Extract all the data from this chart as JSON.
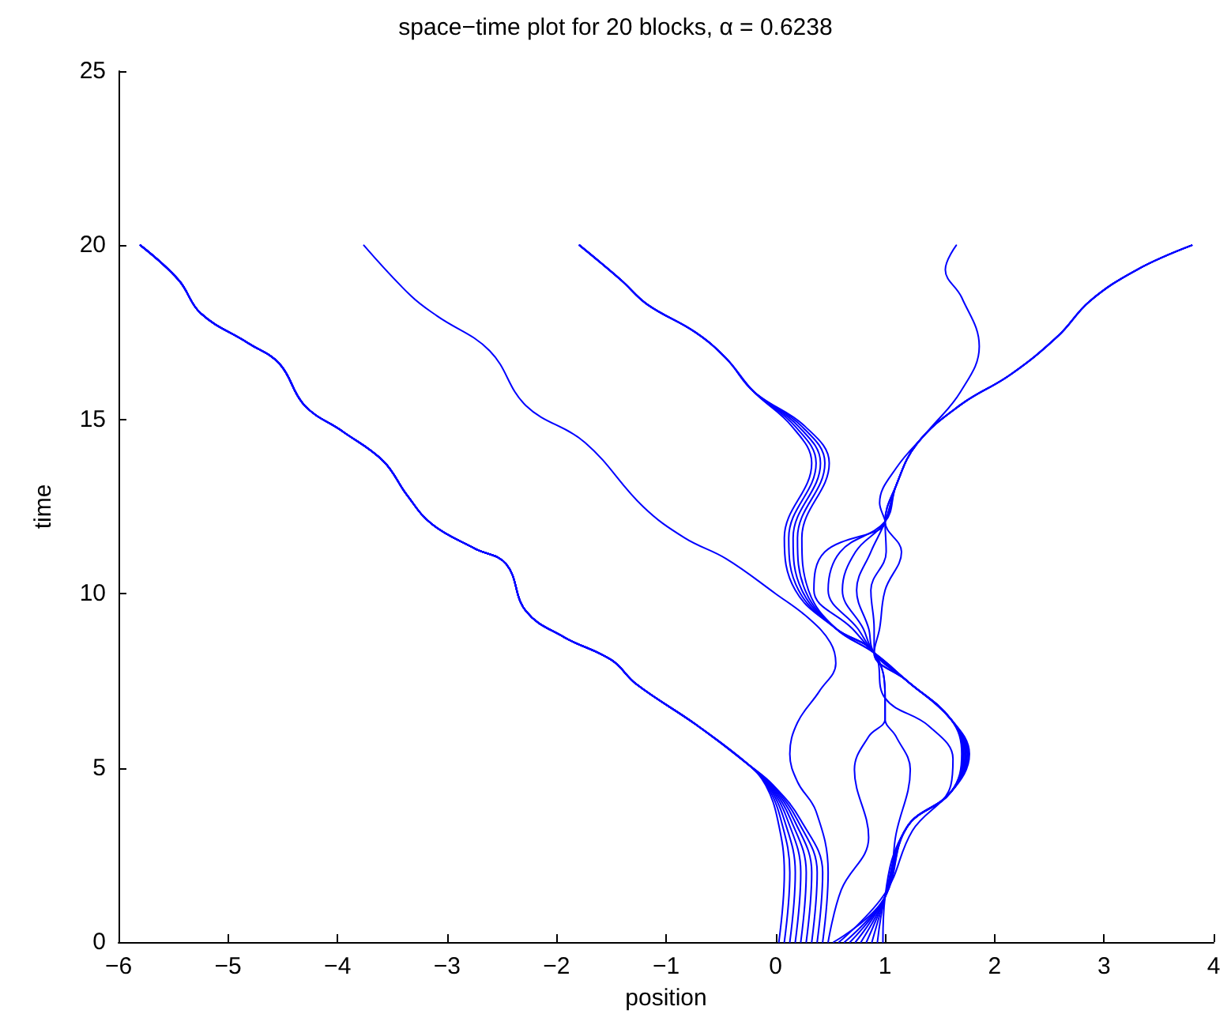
{
  "chart_data": {
    "type": "line",
    "title": "space−time plot for 20 blocks, α = 0.6238",
    "xlabel": "position",
    "ylabel": "time",
    "xlim": [
      -6,
      4
    ],
    "xticks": [
      -6,
      -5,
      -4,
      -3,
      -2,
      -1,
      0,
      1,
      2,
      3,
      4
    ],
    "ylim": [
      0,
      25
    ],
    "yticks": [
      0,
      5,
      10,
      15,
      20,
      25
    ],
    "grid": false,
    "marker": "none",
    "line_style": "solid",
    "series": [
      {
        "color": "#0000ff",
        "x": [
          0.03,
          0.08,
          0.02,
          -0.09,
          -0.25,
          -0.73,
          -1.27,
          -1.5,
          -1.93,
          -2.28,
          -2.46,
          -2.75,
          -3.14,
          -3.37,
          -3.58,
          -3.95,
          -4.3,
          -4.53,
          -4.82,
          -5.25,
          -5.45,
          -5.8
        ],
        "values": [
          0,
          2,
          3.5,
          4.5,
          5.1,
          6.25,
          7.4,
          8.1,
          8.75,
          9.5,
          10.85,
          11.3,
          12,
          12.85,
          13.8,
          14.65,
          15.4,
          16.6,
          17.2,
          18.05,
          19,
          20
        ]
      },
      {
        "color": "#0000ff",
        "x": [
          0.08,
          0.13,
          0.05,
          -0.08,
          -0.25,
          -0.73,
          -1.27,
          -1.5,
          -1.93,
          -2.28,
          -2.46,
          -2.75,
          -3.14,
          -3.37,
          -3.58,
          -3.95,
          -4.3,
          -4.53,
          -4.82,
          -5.25,
          -5.45,
          -5.8
        ],
        "values": [
          0,
          2,
          3.5,
          4.5,
          5.1,
          6.25,
          7.4,
          8.1,
          8.75,
          9.5,
          10.85,
          11.3,
          12,
          12.85,
          13.8,
          14.65,
          15.4,
          16.6,
          17.2,
          18.05,
          19,
          20
        ]
      },
      {
        "color": "#0000ff",
        "x": [
          0.13,
          0.18,
          0.08,
          -0.07,
          -0.25,
          -0.73,
          -1.27,
          -1.5,
          -1.93,
          -2.28,
          -2.46,
          -2.75,
          -3.14,
          -3.37,
          -3.58,
          -3.95,
          -4.3,
          -4.53,
          -4.82,
          -5.25,
          -5.45,
          -5.8
        ],
        "values": [
          0,
          2,
          3.5,
          4.5,
          5.1,
          6.25,
          7.4,
          8.1,
          8.75,
          9.5,
          10.85,
          11.3,
          12,
          12.85,
          13.8,
          14.65,
          15.4,
          16.6,
          17.2,
          18.05,
          19,
          20
        ]
      },
      {
        "color": "#0000ff",
        "x": [
          0.18,
          0.23,
          0.11,
          -0.06,
          -0.25,
          -0.73,
          -1.27,
          -1.5,
          -1.93,
          -2.28,
          -2.46,
          -2.75,
          -3.14,
          -3.37,
          -3.58,
          -3.95,
          -4.3,
          -4.53,
          -4.82,
          -5.25,
          -5.45,
          -5.8
        ],
        "values": [
          0,
          2,
          3.5,
          4.5,
          5.1,
          6.25,
          7.4,
          8.1,
          8.75,
          9.5,
          10.85,
          11.3,
          12,
          12.85,
          13.8,
          14.65,
          15.4,
          16.6,
          17.2,
          18.05,
          19,
          20
        ]
      },
      {
        "color": "#0000ff",
        "x": [
          0.23,
          0.28,
          0.14,
          -0.05,
          -0.25,
          -0.73,
          -1.27,
          -1.5,
          -1.93,
          -2.28,
          -2.46,
          -2.75,
          -3.14,
          -3.37,
          -3.58,
          -3.95,
          -4.3,
          -4.53,
          -4.82,
          -5.25,
          -5.45,
          -5.8
        ],
        "values": [
          0,
          2,
          3.5,
          4.5,
          5.1,
          6.25,
          7.4,
          8.1,
          8.75,
          9.5,
          10.85,
          11.3,
          12,
          12.85,
          13.8,
          14.65,
          15.4,
          16.6,
          17.2,
          18.05,
          19,
          20
        ]
      },
      {
        "color": "#0000ff",
        "x": [
          0.28,
          0.33,
          0.17,
          -0.04,
          -0.25,
          -0.73,
          -1.27,
          -1.5,
          -1.93,
          -2.28,
          -2.46,
          -2.75,
          -3.14,
          -3.37,
          -3.58,
          -3.95,
          -4.3,
          -4.53,
          -4.82,
          -5.25,
          -5.45,
          -5.8
        ],
        "values": [
          0,
          2,
          3.5,
          4.5,
          5.1,
          6.25,
          7.4,
          8.1,
          8.75,
          9.5,
          10.85,
          11.3,
          12,
          12.85,
          13.8,
          14.65,
          15.4,
          16.6,
          17.2,
          18.05,
          19,
          20
        ]
      },
      {
        "color": "#0000ff",
        "x": [
          0.33,
          0.38,
          0.2,
          -0.03,
          -0.25,
          -0.73,
          -1.27,
          -1.5,
          -1.93,
          -2.28,
          -2.46,
          -2.75,
          -3.14,
          -3.37,
          -3.58,
          -3.95,
          -4.3,
          -4.53,
          -4.82,
          -5.25,
          -5.45,
          -5.8
        ],
        "values": [
          0,
          2,
          3.5,
          4.5,
          5.1,
          6.25,
          7.4,
          8.1,
          8.75,
          9.5,
          10.85,
          11.3,
          12,
          12.85,
          13.8,
          14.65,
          15.4,
          16.6,
          17.2,
          18.05,
          19,
          20
        ]
      },
      {
        "color": "#0000ff",
        "x": [
          0.38,
          0.43,
          0.23,
          -0.02,
          -0.25,
          -0.73,
          -1.27,
          -1.5,
          -1.93,
          -2.28,
          -2.46,
          -2.75,
          -3.14,
          -3.37,
          -3.58,
          -3.95,
          -4.3,
          -4.53,
          -4.82,
          -5.25,
          -5.45,
          -5.8
        ],
        "values": [
          0,
          2,
          3.5,
          4.5,
          5.1,
          6.25,
          7.4,
          8.1,
          8.75,
          9.5,
          10.85,
          11.3,
          12,
          12.85,
          13.8,
          14.65,
          15.4,
          16.6,
          17.2,
          18.05,
          19,
          20
        ]
      },
      {
        "color": "#0000ff",
        "x": [
          0.43,
          0.48,
          0.37,
          0.2,
          0.13,
          0.2,
          0.4,
          0.55,
          0.5,
          0.3,
          0,
          -0.45,
          -0.83,
          -1.21,
          -1.74,
          -2.28,
          -2.61,
          -3.09,
          -3.33,
          -3.76
        ],
        "values": [
          0,
          2,
          3.75,
          4.6,
          5.4,
          6.3,
          7.2,
          8,
          8.6,
          9.3,
          10,
          11,
          11.6,
          12.5,
          14.34,
          15.4,
          16.97,
          17.97,
          18.55,
          20
        ]
      },
      {
        "color": "#0000ff",
        "x": [
          0.48,
          0.6,
          0.85,
          0.72,
          0.85,
          1,
          1,
          0.9,
          0.55,
          0.18,
          0.08,
          0.33,
          0.15,
          -0.2,
          -0.45,
          -0.73,
          -1.17,
          -1.41,
          -1.79
        ],
        "values": [
          0,
          1.5,
          3,
          4.95,
          5.9,
          6.4,
          7,
          8.3,
          9,
          10.1,
          11.6,
          13.75,
          14.8,
          15.8,
          16.75,
          17.5,
          18.3,
          19,
          20
        ]
      },
      {
        "color": "#0000ff",
        "x": [
          0.53,
          1,
          1.1,
          1.23,
          1.1,
          1,
          1,
          0.9,
          0.55,
          0.21,
          0.12,
          0.37,
          0.18,
          -0.2,
          -0.45,
          -0.73,
          -1.17,
          -1.41,
          -1.79
        ],
        "values": [
          0,
          1.3,
          3.1,
          4.95,
          5.9,
          6.4,
          7,
          8.3,
          9,
          10.1,
          11.6,
          13.75,
          14.8,
          15.8,
          16.75,
          17.5,
          18.3,
          19,
          20
        ]
      },
      {
        "color": "#0000ff",
        "x": [
          0.58,
          1,
          1.25,
          1.6,
          1.62,
          1.4,
          1,
          0.9,
          0.55,
          0.24,
          0.16,
          0.41,
          0.21,
          -0.2,
          -0.45,
          -0.73,
          -1.17,
          -1.41,
          -1.79
        ],
        "values": [
          0,
          1.4,
          3.2,
          4.5,
          5.26,
          6.2,
          7,
          8.3,
          9,
          10.1,
          11.6,
          13.75,
          14.8,
          15.8,
          16.75,
          17.5,
          18.3,
          19,
          20
        ]
      },
      {
        "color": "#0000ff",
        "x": [
          0.63,
          1,
          1.2,
          1.6,
          1.7,
          1.6,
          1.2,
          0.9,
          0.55,
          0.27,
          0.2,
          0.45,
          0.24,
          -0.2,
          -0.45,
          -0.73,
          -1.17,
          -1.41,
          -1.79
        ],
        "values": [
          0,
          1.3,
          3.3,
          4.3,
          5.4,
          6.4,
          7.5,
          8.3,
          9,
          10.1,
          11.6,
          13.75,
          14.8,
          15.8,
          16.75,
          17.5,
          18.3,
          19,
          20
        ]
      },
      {
        "color": "#0000ff",
        "x": [
          0.68,
          1,
          1.2,
          1.6,
          1.71,
          1.6,
          1.2,
          0.9,
          0.55,
          0.3,
          0.24,
          0.49,
          0.27,
          -0.2,
          -0.45,
          -0.73,
          -1.17,
          -1.41,
          -1.79
        ],
        "values": [
          0,
          1.3,
          3.3,
          4.3,
          5.4,
          6.4,
          7.5,
          8.3,
          9,
          10.1,
          11.6,
          13.75,
          14.8,
          15.8,
          16.75,
          17.5,
          18.3,
          19,
          20
        ]
      },
      {
        "color": "#0000ff",
        "x": [
          0.73,
          1,
          1.2,
          1.6,
          1.72,
          1.6,
          1.2,
          0.9,
          0.7,
          0.35,
          0.45,
          1,
          0.95,
          1.1,
          1.4,
          1.69,
          1.86,
          1.7,
          1.55,
          1.65
        ],
        "values": [
          0,
          1.3,
          3.3,
          4.3,
          5.4,
          6.4,
          7.5,
          8.3,
          9,
          10.1,
          11.2,
          12.07,
          12.6,
          13.6,
          14.7,
          15.8,
          17.1,
          18.5,
          19.3,
          20
        ]
      },
      {
        "color": "#0000ff",
        "x": [
          0.78,
          1,
          1.2,
          1.6,
          1.73,
          1.6,
          1.2,
          0.9,
          0.75,
          0.48,
          0.59,
          1,
          1.1,
          1.29,
          1.68,
          2.15,
          2.58,
          2.87,
          3.3,
          3.8
        ],
        "values": [
          0,
          1.3,
          3.3,
          4.3,
          5.4,
          6.4,
          7.5,
          8.3,
          9,
          10.1,
          11.2,
          12.07,
          13.1,
          14.3,
          15.4,
          16.3,
          17.4,
          18.4,
          19.3,
          20
        ]
      },
      {
        "color": "#0000ff",
        "x": [
          0.83,
          1,
          1.2,
          1.6,
          1.74,
          1.6,
          1.2,
          0.9,
          0.8,
          0.61,
          0.73,
          1,
          1.1,
          1.29,
          1.68,
          2.15,
          2.58,
          2.87,
          3.3,
          3.8
        ],
        "values": [
          0,
          1.3,
          3.3,
          4.3,
          5.4,
          6.4,
          7.5,
          8.3,
          9,
          10.1,
          11.2,
          12.07,
          13.1,
          14.3,
          15.4,
          16.3,
          17.4,
          18.4,
          19.3,
          20
        ]
      },
      {
        "color": "#0000ff",
        "x": [
          0.88,
          1,
          1.2,
          1.6,
          1.75,
          1.6,
          1.2,
          0.9,
          0.85,
          0.74,
          0.87,
          1,
          1.1,
          1.29,
          1.68,
          2.15,
          2.58,
          2.87,
          3.3,
          3.8
        ],
        "values": [
          0,
          1.3,
          3.3,
          4.3,
          5.4,
          6.4,
          7.5,
          8.3,
          9,
          10.1,
          11.2,
          12.07,
          13.1,
          14.3,
          15.4,
          16.3,
          17.4,
          18.4,
          19.3,
          20
        ]
      },
      {
        "color": "#0000ff",
        "x": [
          0.93,
          1,
          1.2,
          1.6,
          1.76,
          1.6,
          1.2,
          0.9,
          0.9,
          0.87,
          1.01,
          1,
          1.1,
          1.29,
          1.68,
          2.15,
          2.58,
          2.87,
          3.3,
          3.8
        ],
        "values": [
          0,
          1.3,
          3.3,
          4.3,
          5.4,
          6.4,
          7.5,
          8.3,
          9,
          10.1,
          11.2,
          12.07,
          13.1,
          14.3,
          15.4,
          16.3,
          17.4,
          18.4,
          19.3,
          20
        ]
      },
      {
        "color": "#0000ff",
        "x": [
          0.98,
          1,
          1.2,
          1.6,
          1.77,
          1.6,
          1.2,
          0.9,
          0.95,
          1,
          1.15,
          1,
          1.1,
          1.29,
          1.68,
          2.15,
          2.58,
          2.87,
          3.3,
          3.8
        ],
        "values": [
          0,
          1.3,
          3.3,
          4.3,
          5.4,
          6.4,
          7.5,
          8.3,
          9,
          10.1,
          11.2,
          12.07,
          13.1,
          14.3,
          15.4,
          16.3,
          17.4,
          18.4,
          19.3,
          20
        ]
      }
    ]
  }
}
